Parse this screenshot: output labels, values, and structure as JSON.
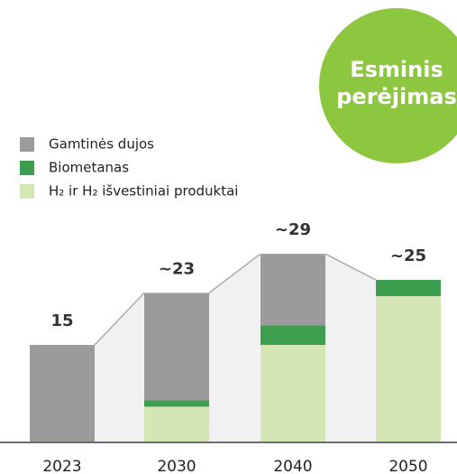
{
  "chart_data": {
    "type": "stacked_bar",
    "annotation_lines": [
      "Esminis",
      "perėjimas"
    ],
    "categories": [
      "2023",
      "2030",
      "2040",
      "2050"
    ],
    "series": [
      {
        "name": "H₂ ir H₂ išvestiniai produktai",
        "color": "#d4e6b5",
        "values": [
          0,
          5.5,
          15,
          22.5
        ]
      },
      {
        "name": "Biometanas",
        "color": "#3e9e50",
        "values": [
          0,
          1,
          3,
          2.5
        ]
      },
      {
        "name": "Gamtinės dujos",
        "color": "#9b9b9b",
        "values": [
          15,
          16.5,
          11,
          0
        ]
      }
    ],
    "totals": [
      15,
      23,
      29,
      25
    ],
    "value_labels": [
      "15",
      "~23",
      "~29",
      "~25"
    ],
    "legend_order": [
      2,
      1,
      0
    ],
    "ylim": [
      0,
      30
    ]
  }
}
